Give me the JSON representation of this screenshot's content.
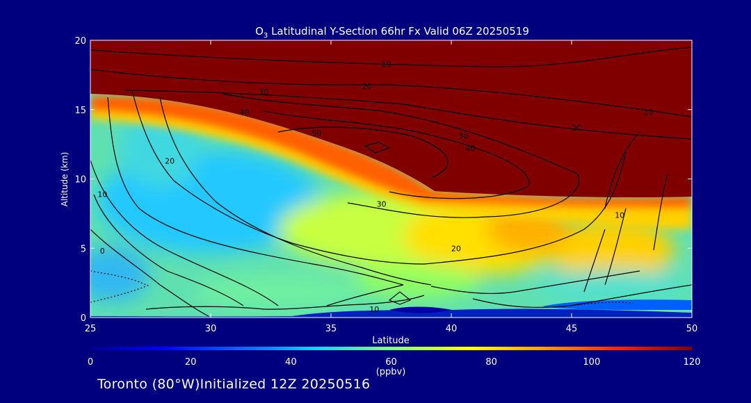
{
  "chart_data": {
    "type": "heatmap",
    "title_prefix": "O",
    "title_sub": "3",
    "title_rest": " Latitudinal Y-Section 66hr  Fx Valid 06Z 20250519",
    "xlabel": "Latitude",
    "ylabel": "Altitude (km)",
    "xlim": [
      25,
      50
    ],
    "ylim": [
      0,
      20
    ],
    "x_ticks": [
      25,
      30,
      35,
      40,
      45,
      50
    ],
    "y_ticks": [
      0,
      5,
      10,
      15,
      20
    ],
    "color_scale": {
      "min": 0,
      "max": 120,
      "ticks": [
        0,
        20,
        40,
        60,
        80,
        100,
        120
      ],
      "unit_label": "(ppbv)",
      "colors": [
        "#00008f",
        "#0040ff",
        "#00bfff",
        "#80ff80",
        "#ffff00",
        "#ff8000",
        "#ff0000",
        "#800000"
      ]
    },
    "contour_labels": [
      {
        "text": "10",
        "lat": 37.3,
        "alt": 18.3
      },
      {
        "text": "30",
        "lat": 32.2,
        "alt": 16.3
      },
      {
        "text": "20",
        "lat": 36.5,
        "alt": 16.7
      },
      {
        "text": "40",
        "lat": 31.4,
        "alt": 14.8
      },
      {
        "text": "50",
        "lat": 34.4,
        "alt": 13.3
      },
      {
        "text": "30",
        "lat": 40.5,
        "alt": 13.1
      },
      {
        "text": "40",
        "lat": 40.8,
        "alt": 12.2
      },
      {
        "text": "20",
        "lat": 28.3,
        "alt": 11.3
      },
      {
        "text": "10",
        "lat": 25.5,
        "alt": 8.9
      },
      {
        "text": "30",
        "lat": 37.1,
        "alt": 8.2
      },
      {
        "text": "20",
        "lat": 45.2,
        "alt": 13.7
      },
      {
        "text": "10",
        "lat": 48.2,
        "alt": 14.8
      },
      {
        "text": "10",
        "lat": 47.0,
        "alt": 7.4
      },
      {
        "text": "20",
        "lat": 40.2,
        "alt": 5.0
      },
      {
        "text": "0",
        "lat": 25.5,
        "alt": 4.8
      },
      {
        "text": "10",
        "lat": 36.8,
        "alt": 0.6
      }
    ]
  },
  "footer_text": "Toronto (80°W)Initialized 12Z 20250516"
}
